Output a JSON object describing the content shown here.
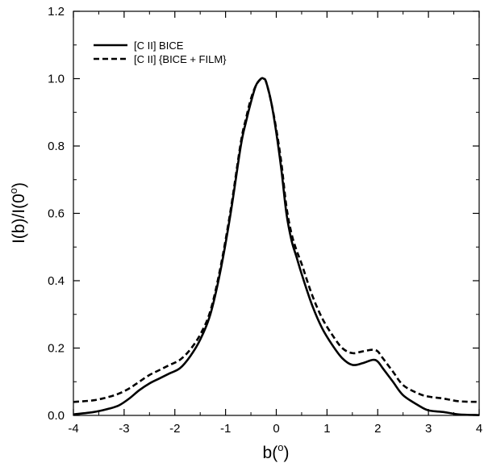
{
  "chart_data": {
    "type": "line",
    "xlabel": "b(",
    "xlabel_sup": "o",
    "xlabel_close": ")",
    "ylabel": "I(b)/I(0",
    "ylabel_sup": "o",
    "ylabel_close": ")",
    "xlim": [
      -4,
      4
    ],
    "ylim": [
      0,
      1.2
    ],
    "x_ticks": [
      "-4",
      "-3",
      "-2",
      "-1",
      "0",
      "1",
      "2",
      "3",
      "4"
    ],
    "y_ticks": [
      "0.0",
      "0.2",
      "0.4",
      "0.6",
      "0.8",
      "1.0",
      "1.2"
    ],
    "grid": false,
    "legend_position": "top-left",
    "series": [
      {
        "name": "[C II] BICE",
        "style": "solid",
        "color": "#000000",
        "x": [
          -4.0,
          -3.6,
          -3.3,
          -3.1,
          -2.9,
          -2.7,
          -2.5,
          -2.3,
          -2.1,
          -1.9,
          -1.7,
          -1.5,
          -1.3,
          -1.1,
          -0.9,
          -0.7,
          -0.6,
          -0.5,
          -0.4,
          -0.3,
          -0.25,
          -0.2,
          -0.1,
          0.0,
          0.1,
          0.2,
          0.3,
          0.4,
          0.5,
          0.7,
          0.9,
          1.1,
          1.3,
          1.5,
          1.7,
          1.9,
          2.0,
          2.1,
          2.3,
          2.5,
          2.8,
          3.0,
          3.3,
          3.6,
          4.0
        ],
        "y": [
          0.003,
          0.01,
          0.02,
          0.03,
          0.05,
          0.075,
          0.095,
          0.11,
          0.125,
          0.14,
          0.175,
          0.225,
          0.3,
          0.43,
          0.6,
          0.8,
          0.87,
          0.93,
          0.98,
          1.0,
          1.0,
          0.99,
          0.93,
          0.84,
          0.73,
          0.6,
          0.52,
          0.47,
          0.42,
          0.33,
          0.26,
          0.21,
          0.17,
          0.15,
          0.155,
          0.165,
          0.16,
          0.14,
          0.1,
          0.06,
          0.03,
          0.015,
          0.01,
          0.003,
          0.001
        ]
      },
      {
        "name": "[C II] {BICE + FILM}",
        "style": "dashed",
        "color": "#000000",
        "x": [
          -4.0,
          -3.6,
          -3.3,
          -3.1,
          -2.9,
          -2.7,
          -2.5,
          -2.3,
          -2.1,
          -1.9,
          -1.7,
          -1.5,
          -1.3,
          -1.1,
          -0.9,
          -0.7,
          -0.6,
          -0.5,
          -0.4,
          -0.3,
          -0.25,
          -0.2,
          -0.1,
          0.0,
          0.1,
          0.2,
          0.3,
          0.4,
          0.5,
          0.7,
          0.9,
          1.1,
          1.3,
          1.5,
          1.7,
          1.9,
          2.0,
          2.1,
          2.3,
          2.5,
          2.8,
          3.0,
          3.3,
          3.6,
          4.0
        ],
        "y": [
          0.04,
          0.045,
          0.055,
          0.065,
          0.08,
          0.1,
          0.12,
          0.135,
          0.15,
          0.165,
          0.195,
          0.24,
          0.31,
          0.44,
          0.61,
          0.81,
          0.88,
          0.94,
          0.98,
          1.0,
          1.0,
          0.99,
          0.93,
          0.85,
          0.75,
          0.62,
          0.54,
          0.49,
          0.45,
          0.36,
          0.29,
          0.24,
          0.2,
          0.185,
          0.19,
          0.195,
          0.19,
          0.17,
          0.13,
          0.09,
          0.065,
          0.056,
          0.05,
          0.042,
          0.04
        ]
      }
    ]
  }
}
